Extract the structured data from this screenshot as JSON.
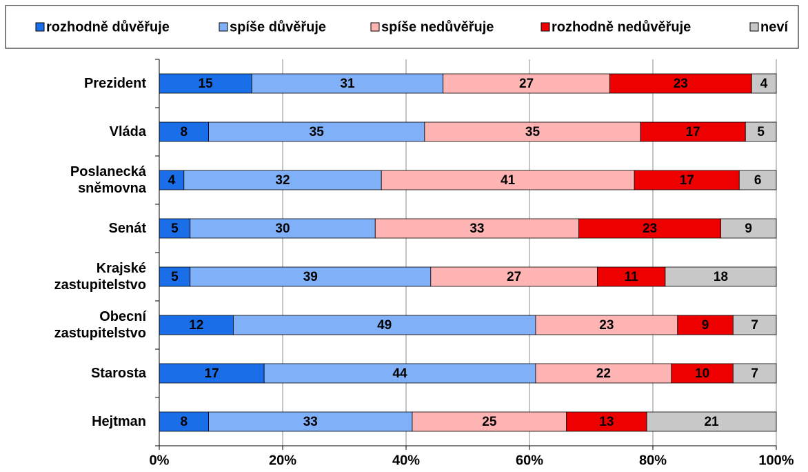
{
  "chart_data": {
    "type": "stacked_bar_horizontal",
    "categories": [
      "Prezident",
      "Vláda",
      "Poslanecká sněmovna",
      "Senát",
      "Krajské zastupitelstvo",
      "Obecní zastupitelstvo",
      "Starosta",
      "Hejtman"
    ],
    "series": [
      {
        "name": "rozhodně důvěřuje",
        "color": "#1a6ee8",
        "values": [
          15,
          8,
          4,
          5,
          5,
          12,
          17,
          8
        ]
      },
      {
        "name": "spíše důvěřuje",
        "color": "#80b1f8",
        "values": [
          31,
          35,
          32,
          30,
          39,
          49,
          44,
          33
        ]
      },
      {
        "name": "spíše nedůvěřuje",
        "color": "#ffb4b4",
        "values": [
          27,
          35,
          41,
          33,
          27,
          23,
          22,
          25
        ]
      },
      {
        "name": "rozhodně nedůvěřuje",
        "color": "#ee0000",
        "values": [
          23,
          17,
          17,
          23,
          11,
          9,
          10,
          13
        ]
      },
      {
        "name": "neví",
        "color": "#c8c8c8",
        "values": [
          4,
          5,
          6,
          9,
          18,
          7,
          7,
          21
        ]
      }
    ],
    "xlim": [
      0,
      100
    ],
    "xticks": [
      {
        "value": 0,
        "label": "0%"
      },
      {
        "value": 20,
        "label": "20%"
      },
      {
        "value": 40,
        "label": "40%"
      },
      {
        "value": 60,
        "label": "60%"
      },
      {
        "value": 80,
        "label": "80%"
      },
      {
        "value": 100,
        "label": "100%"
      }
    ],
    "grid": true,
    "legend": "top"
  }
}
